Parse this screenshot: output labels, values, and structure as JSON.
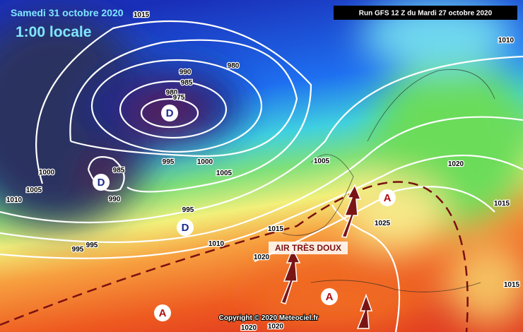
{
  "header": {
    "date": "Samedi 31 octobre 2020",
    "time": "1:00 locale",
    "run": "Run GFS 12 Z du Mardi 27 octobre 2020"
  },
  "isobar_labels": [
    "1015",
    "990",
    "980",
    "985",
    "980",
    "975",
    "995",
    "1000",
    "1005",
    "1005",
    "985",
    "990",
    "1000",
    "1005",
    "1010",
    "995",
    "1015",
    "1010",
    "995",
    "995",
    "1020",
    "1025",
    "1020",
    "1015",
    "1010",
    "1015",
    "1020",
    "1020"
  ],
  "centers": [
    "D",
    "D",
    "D",
    "A",
    "A",
    "A"
  ],
  "annotation": "AIR TRÈS DOUX",
  "copyright": "Copyright © 2020 Meteociel.fr"
}
